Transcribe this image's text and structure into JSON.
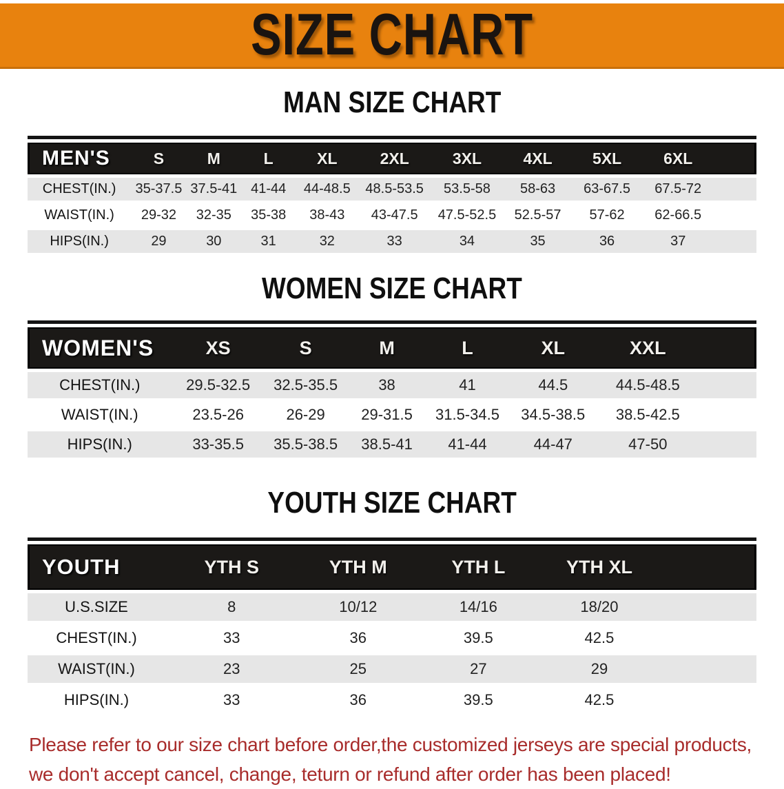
{
  "banner": {
    "title": "SIZE CHART"
  },
  "colors": {
    "banner_orange": "#E8820E",
    "header_bar_black": "#1B1917",
    "row_gray": "#E6E6E6",
    "disclaimer_red": "#A82C2B"
  },
  "sections": {
    "men": {
      "heading": "MAN SIZE CHART",
      "table": {
        "header": {
          "label": "MEN'S",
          "sizes": [
            "S",
            "M",
            "L",
            "XL",
            "2XL",
            "3XL",
            "4XL",
            "5XL",
            "6XL"
          ]
        },
        "rows": [
          {
            "label": "CHEST(IN.)",
            "values": [
              "35-37.5",
              "37.5-41",
              "41-44",
              "44-48.5",
              "48.5-53.5",
              "53.5-58",
              "58-63",
              "63-67.5",
              "67.5-72"
            ]
          },
          {
            "label": "WAIST(IN.)",
            "values": [
              "29-32",
              "32-35",
              "35-38",
              "38-43",
              "43-47.5",
              "47.5-52.5",
              "52.5-57",
              "57-62",
              "62-66.5"
            ]
          },
          {
            "label": "HIPS(IN.)",
            "values": [
              "29",
              "30",
              "31",
              "32",
              "33",
              "34",
              "35",
              "36",
              "37"
            ]
          }
        ]
      }
    },
    "women": {
      "heading": "WOMEN SIZE CHART",
      "table": {
        "header": {
          "label": "WOMEN'S",
          "sizes": [
            "XS",
            "S",
            "M",
            "L",
            "XL",
            "XXL"
          ]
        },
        "rows": [
          {
            "label": "CHEST(IN.)",
            "values": [
              "29.5-32.5",
              "32.5-35.5",
              "38",
              "41",
              "44.5",
              "44.5-48.5"
            ]
          },
          {
            "label": "WAIST(IN.)",
            "values": [
              "23.5-26",
              "26-29",
              "29-31.5",
              "31.5-34.5",
              "34.5-38.5",
              "38.5-42.5"
            ]
          },
          {
            "label": "HIPS(IN.)",
            "values": [
              "33-35.5",
              "35.5-38.5",
              "38.5-41",
              "41-44",
              "44-47",
              "47-50"
            ]
          }
        ]
      }
    },
    "youth": {
      "heading": "YOUTH SIZE CHART",
      "table": {
        "header": {
          "label": "YOUTH",
          "sizes": [
            "YTH S",
            "YTH M",
            "YTH L",
            "YTH XL"
          ]
        },
        "rows": [
          {
            "label": "U.S.SIZE",
            "values": [
              "8",
              "10/12",
              "14/16",
              "18/20"
            ]
          },
          {
            "label": "CHEST(IN.)",
            "values": [
              "33",
              "36",
              "39.5",
              "42.5"
            ]
          },
          {
            "label": "WAIST(IN.)",
            "values": [
              "23",
              "25",
              "27",
              "29"
            ]
          },
          {
            "label": "HIPS(IN.)",
            "values": [
              "33",
              "36",
              "39.5",
              "42.5"
            ]
          }
        ]
      }
    }
  },
  "disclaimer": {
    "line1": "Please refer to our size chart before order,the customized jerseys are special products,",
    "line2": "we don't accept cancel, change, teturn or refund after order has been placed!"
  }
}
